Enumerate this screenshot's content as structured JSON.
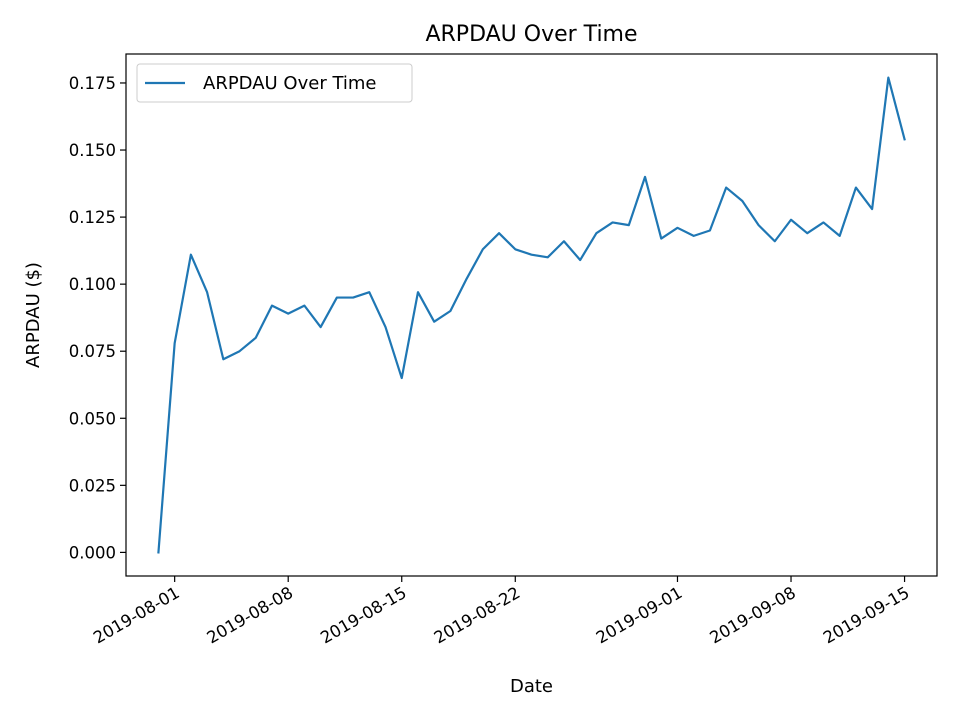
{
  "chart_data": {
    "type": "line",
    "title": "ARPDAU Over Time",
    "xlabel": "Date",
    "ylabel": "ARPDAU ($)",
    "legend": {
      "placement": "top-left"
    },
    "grid": false,
    "xlim": [
      "2019-07-29",
      "2019-09-17"
    ],
    "ylim": [
      -0.0088,
      0.1858
    ],
    "x_ticks": [
      "2019-08-01",
      "2019-08-08",
      "2019-08-15",
      "2019-08-22",
      "2019-09-01",
      "2019-09-08",
      "2019-09-15"
    ],
    "y_ticks": [
      "0.000",
      "0.025",
      "0.050",
      "0.075",
      "0.100",
      "0.125",
      "0.150",
      "0.175"
    ],
    "series": [
      {
        "name": "ARPDAU Over Time",
        "color": "#1f77b4",
        "x": [
          "2019-07-31",
          "2019-08-01",
          "2019-08-02",
          "2019-08-03",
          "2019-08-04",
          "2019-08-05",
          "2019-08-06",
          "2019-08-07",
          "2019-08-08",
          "2019-08-09",
          "2019-08-10",
          "2019-08-11",
          "2019-08-12",
          "2019-08-13",
          "2019-08-14",
          "2019-08-15",
          "2019-08-16",
          "2019-08-17",
          "2019-08-18",
          "2019-08-19",
          "2019-08-20",
          "2019-08-21",
          "2019-08-22",
          "2019-08-23",
          "2019-08-24",
          "2019-08-25",
          "2019-08-26",
          "2019-08-27",
          "2019-08-28",
          "2019-08-29",
          "2019-08-30",
          "2019-08-31",
          "2019-09-01",
          "2019-09-02",
          "2019-09-03",
          "2019-09-04",
          "2019-09-05",
          "2019-09-06",
          "2019-09-07",
          "2019-09-08",
          "2019-09-09",
          "2019-09-10",
          "2019-09-11",
          "2019-09-12",
          "2019-09-13",
          "2019-09-14",
          "2019-09-15"
        ],
        "values": [
          0.0,
          0.078,
          0.111,
          0.097,
          0.072,
          0.075,
          0.08,
          0.092,
          0.089,
          0.092,
          0.084,
          0.095,
          0.095,
          0.097,
          0.084,
          0.065,
          0.097,
          0.086,
          0.09,
          0.102,
          0.113,
          0.119,
          0.113,
          0.111,
          0.11,
          0.116,
          0.109,
          0.119,
          0.123,
          0.122,
          0.14,
          0.117,
          0.121,
          0.118,
          0.12,
          0.136,
          0.131,
          0.122,
          0.116,
          0.124,
          0.119,
          0.123,
          0.118,
          0.136,
          0.128,
          0.177,
          0.154
        ]
      }
    ]
  }
}
